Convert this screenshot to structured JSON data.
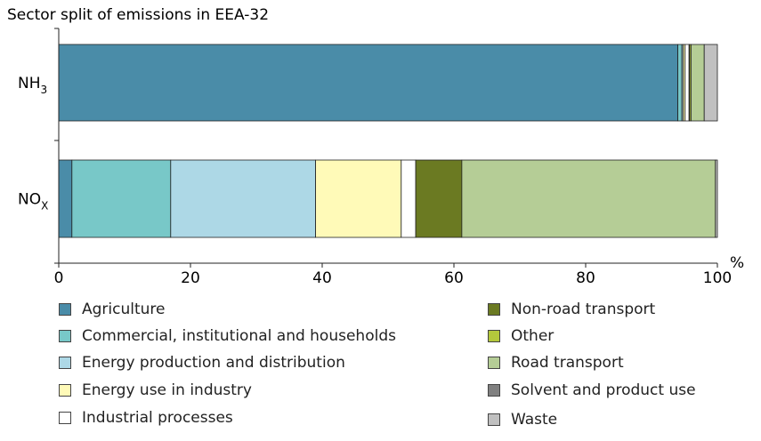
{
  "chart_data": {
    "type": "bar",
    "orientation": "horizontal",
    "stacked": true,
    "title": "Sector split of emissions in EEA-32",
    "unit_label": "%",
    "xlim": [
      0,
      100
    ],
    "x_ticks": [
      "0",
      "20",
      "40",
      "60",
      "80",
      "100"
    ],
    "categories": [
      {
        "label_main": "NH",
        "label_sub": "3"
      },
      {
        "label_main": "NO",
        "label_sub": "X"
      }
    ],
    "series": [
      {
        "name": "Agriculture",
        "color": "#4a8ca8",
        "values": [
          94,
          2
        ]
      },
      {
        "name": "Commercial, institutional and households",
        "color": "#78c8c8",
        "values": [
          0.6,
          15
        ]
      },
      {
        "name": "Energy production and distribution",
        "color": "#add8e6",
        "values": [
          0.2,
          22
        ]
      },
      {
        "name": "Energy use in industry",
        "color": "#fffab8",
        "values": [
          0.3,
          13
        ]
      },
      {
        "name": "Industrial processes",
        "color": "#ffffff",
        "values": [
          0.6,
          2.2
        ]
      },
      {
        "name": "Non-road transport",
        "color": "#6b7a22",
        "values": [
          0.1,
          7
        ]
      },
      {
        "name": "Other",
        "color": "#b4c83c",
        "values": [
          0.2,
          0
        ]
      },
      {
        "name": "Road transport",
        "color": "#b5cd96",
        "values": [
          2.0,
          38.5
        ]
      },
      {
        "name": "Solvent and product use",
        "color": "#808080",
        "values": [
          0,
          0
        ]
      },
      {
        "name": "Waste",
        "color": "#c0c0c0",
        "values": [
          2.0,
          0.3
        ]
      }
    ],
    "legend_placement": "bottom",
    "grid": false
  }
}
